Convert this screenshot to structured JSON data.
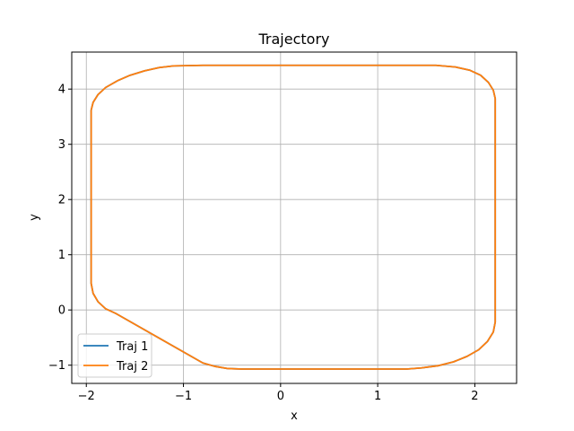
{
  "chart_data": {
    "type": "line",
    "title": "Trajectory",
    "xlabel": "x",
    "ylabel": "y",
    "xlim": [
      -2.15,
      2.43
    ],
    "ylim": [
      -1.33,
      4.67
    ],
    "x_ticks": [
      -2,
      -1,
      0,
      1,
      2
    ],
    "y_ticks": [
      -1,
      0,
      1,
      2,
      3,
      4
    ],
    "x_tick_labels": [
      "−2",
      "−1",
      "0",
      "1",
      "2"
    ],
    "y_tick_labels": [
      "−1",
      "0",
      "1",
      "2",
      "3",
      "4"
    ],
    "grid": true,
    "legend_position": "lower-left",
    "series": [
      {
        "name": "Traj 1",
        "color": "#1f77b4",
        "points": [
          [
            -1.95,
            3.62
          ],
          [
            -1.93,
            3.76
          ],
          [
            -1.88,
            3.9
          ],
          [
            -1.8,
            4.03
          ],
          [
            -1.68,
            4.15
          ],
          [
            -1.55,
            4.25
          ],
          [
            -1.4,
            4.33
          ],
          [
            -1.25,
            4.39
          ],
          [
            -1.1,
            4.42
          ],
          [
            -0.8,
            4.43
          ],
          [
            0,
            4.43
          ],
          [
            1.0,
            4.43
          ],
          [
            1.6,
            4.43
          ],
          [
            1.8,
            4.4
          ],
          [
            1.95,
            4.34
          ],
          [
            2.06,
            4.25
          ],
          [
            2.14,
            4.12
          ],
          [
            2.19,
            3.98
          ],
          [
            2.21,
            3.83
          ],
          [
            2.21,
            2.5
          ],
          [
            2.21,
            1.0
          ],
          [
            2.21,
            -0.22
          ],
          [
            2.19,
            -0.4
          ],
          [
            2.13,
            -0.57
          ],
          [
            2.04,
            -0.72
          ],
          [
            1.92,
            -0.84
          ],
          [
            1.78,
            -0.94
          ],
          [
            1.62,
            -1.01
          ],
          [
            1.45,
            -1.05
          ],
          [
            1.3,
            -1.07
          ],
          [
            0.5,
            -1.07
          ],
          [
            -0.4,
            -1.07
          ],
          [
            -0.55,
            -1.06
          ],
          [
            -0.68,
            -1.02
          ],
          [
            -0.8,
            -0.96
          ],
          [
            -1.7,
            -0.06
          ],
          [
            -1.8,
            0.02
          ],
          [
            -1.88,
            0.15
          ],
          [
            -1.93,
            0.3
          ],
          [
            -1.95,
            0.48
          ],
          [
            -1.95,
            2.0
          ],
          [
            -1.95,
            3.62
          ]
        ]
      },
      {
        "name": "Traj 2",
        "color": "#ff7f0e",
        "points": [
          [
            -1.95,
            3.62
          ],
          [
            -1.93,
            3.76
          ],
          [
            -1.88,
            3.9
          ],
          [
            -1.8,
            4.03
          ],
          [
            -1.68,
            4.15
          ],
          [
            -1.55,
            4.25
          ],
          [
            -1.4,
            4.33
          ],
          [
            -1.25,
            4.39
          ],
          [
            -1.1,
            4.42
          ],
          [
            -0.8,
            4.43
          ],
          [
            0,
            4.43
          ],
          [
            1.0,
            4.43
          ],
          [
            1.6,
            4.43
          ],
          [
            1.8,
            4.4
          ],
          [
            1.95,
            4.34
          ],
          [
            2.06,
            4.25
          ],
          [
            2.14,
            4.12
          ],
          [
            2.19,
            3.98
          ],
          [
            2.21,
            3.83
          ],
          [
            2.21,
            2.5
          ],
          [
            2.21,
            1.0
          ],
          [
            2.21,
            -0.22
          ],
          [
            2.19,
            -0.4
          ],
          [
            2.13,
            -0.57
          ],
          [
            2.04,
            -0.72
          ],
          [
            1.92,
            -0.84
          ],
          [
            1.78,
            -0.94
          ],
          [
            1.62,
            -1.01
          ],
          [
            1.45,
            -1.05
          ],
          [
            1.3,
            -1.07
          ],
          [
            0.5,
            -1.07
          ],
          [
            -0.4,
            -1.07
          ],
          [
            -0.55,
            -1.06
          ],
          [
            -0.68,
            -1.02
          ],
          [
            -0.8,
            -0.96
          ],
          [
            -1.7,
            -0.06
          ],
          [
            -1.8,
            0.02
          ],
          [
            -1.88,
            0.15
          ],
          [
            -1.93,
            0.3
          ],
          [
            -1.95,
            0.48
          ],
          [
            -1.95,
            2.0
          ],
          [
            -1.95,
            3.62
          ]
        ]
      }
    ]
  }
}
